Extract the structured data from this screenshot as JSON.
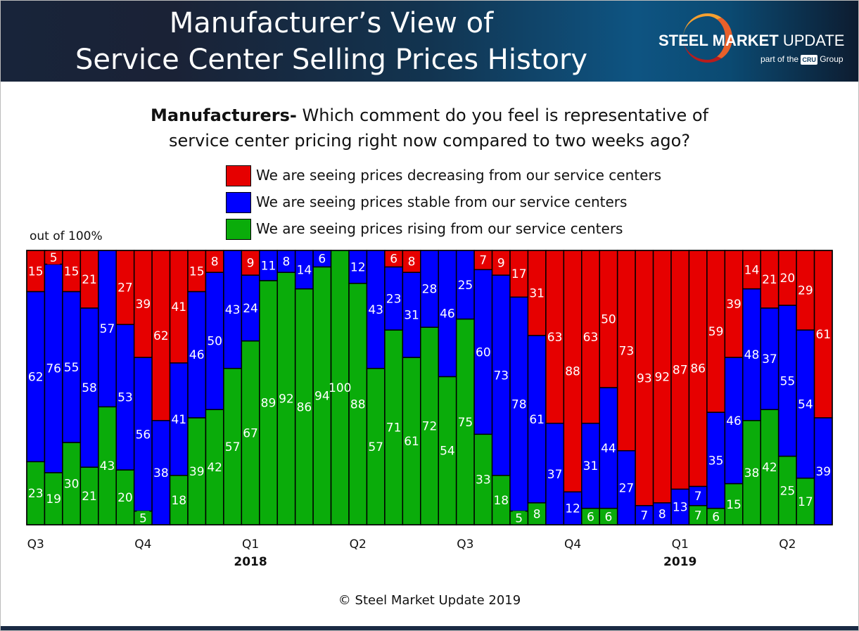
{
  "header": {
    "title_line1": "Manufacturer’s View of",
    "title_line2": "Service Center Selling Prices History",
    "logo": {
      "brand_bold": "STEEL MARKET",
      "brand_light": " UPDATE",
      "sub_pre": "part of the ",
      "sub_mark": "CRU",
      "sub_post": " Group"
    }
  },
  "question": {
    "bold": "Manufacturers-",
    "line1": " Which comment do you feel is representative of",
    "line2": "service center pricing right now compared to two weeks ago?"
  },
  "copyright": "© Steel Market Update 2019",
  "chart_data": {
    "type": "bar",
    "stacked": true,
    "ylabel": "out of 100%",
    "ylim": [
      0,
      100
    ],
    "grid": false,
    "legend_position": "top",
    "series": [
      {
        "name": "We are seeing prices decreasing from our service centers",
        "color": "#e60000",
        "values": [
          15,
          5,
          15,
          21,
          0,
          27,
          39,
          62,
          41,
          15,
          8,
          0,
          9,
          0,
          0,
          0,
          0,
          0,
          0,
          0,
          6,
          8,
          0,
          0,
          0,
          7,
          9,
          17,
          31,
          63,
          88,
          63,
          50,
          73,
          93,
          92,
          87,
          86,
          59,
          39,
          14,
          21,
          20,
          29,
          61
        ]
      },
      {
        "name": "We are seeing prices stable from our service centers",
        "color": "#0000ff",
        "values": [
          62,
          76,
          55,
          58,
          57,
          53,
          56,
          38,
          41,
          46,
          50,
          43,
          24,
          11,
          8,
          14,
          6,
          0,
          12,
          43,
          23,
          31,
          28,
          46,
          25,
          60,
          73,
          78,
          61,
          37,
          12,
          31,
          44,
          27,
          7,
          8,
          13,
          7,
          35,
          46,
          48,
          37,
          55,
          54,
          39
        ]
      },
      {
        "name": "We are seeing prices rising from our service centers",
        "color": "#0aac0a",
        "values": [
          23,
          19,
          30,
          21,
          43,
          20,
          5,
          0,
          18,
          39,
          42,
          57,
          67,
          89,
          92,
          86,
          94,
          100,
          88,
          57,
          71,
          61,
          72,
          54,
          75,
          33,
          18,
          5,
          8,
          0,
          0,
          6,
          6,
          0,
          0,
          0,
          0,
          7,
          6,
          15,
          38,
          42,
          25,
          17,
          0
        ]
      }
    ],
    "quarter_ticks": [
      {
        "bar": 0,
        "label": "Q3"
      },
      {
        "bar": 6,
        "label": "Q4"
      },
      {
        "bar": 12,
        "label": "Q1"
      },
      {
        "bar": 18,
        "label": "Q2"
      },
      {
        "bar": 24,
        "label": "Q3"
      },
      {
        "bar": 30,
        "label": "Q4"
      },
      {
        "bar": 36,
        "label": "Q1"
      },
      {
        "bar": 42,
        "label": "Q2"
      }
    ],
    "year_labels": [
      {
        "bar": 12,
        "label": "2018"
      },
      {
        "bar": 36,
        "label": "2019"
      }
    ]
  }
}
